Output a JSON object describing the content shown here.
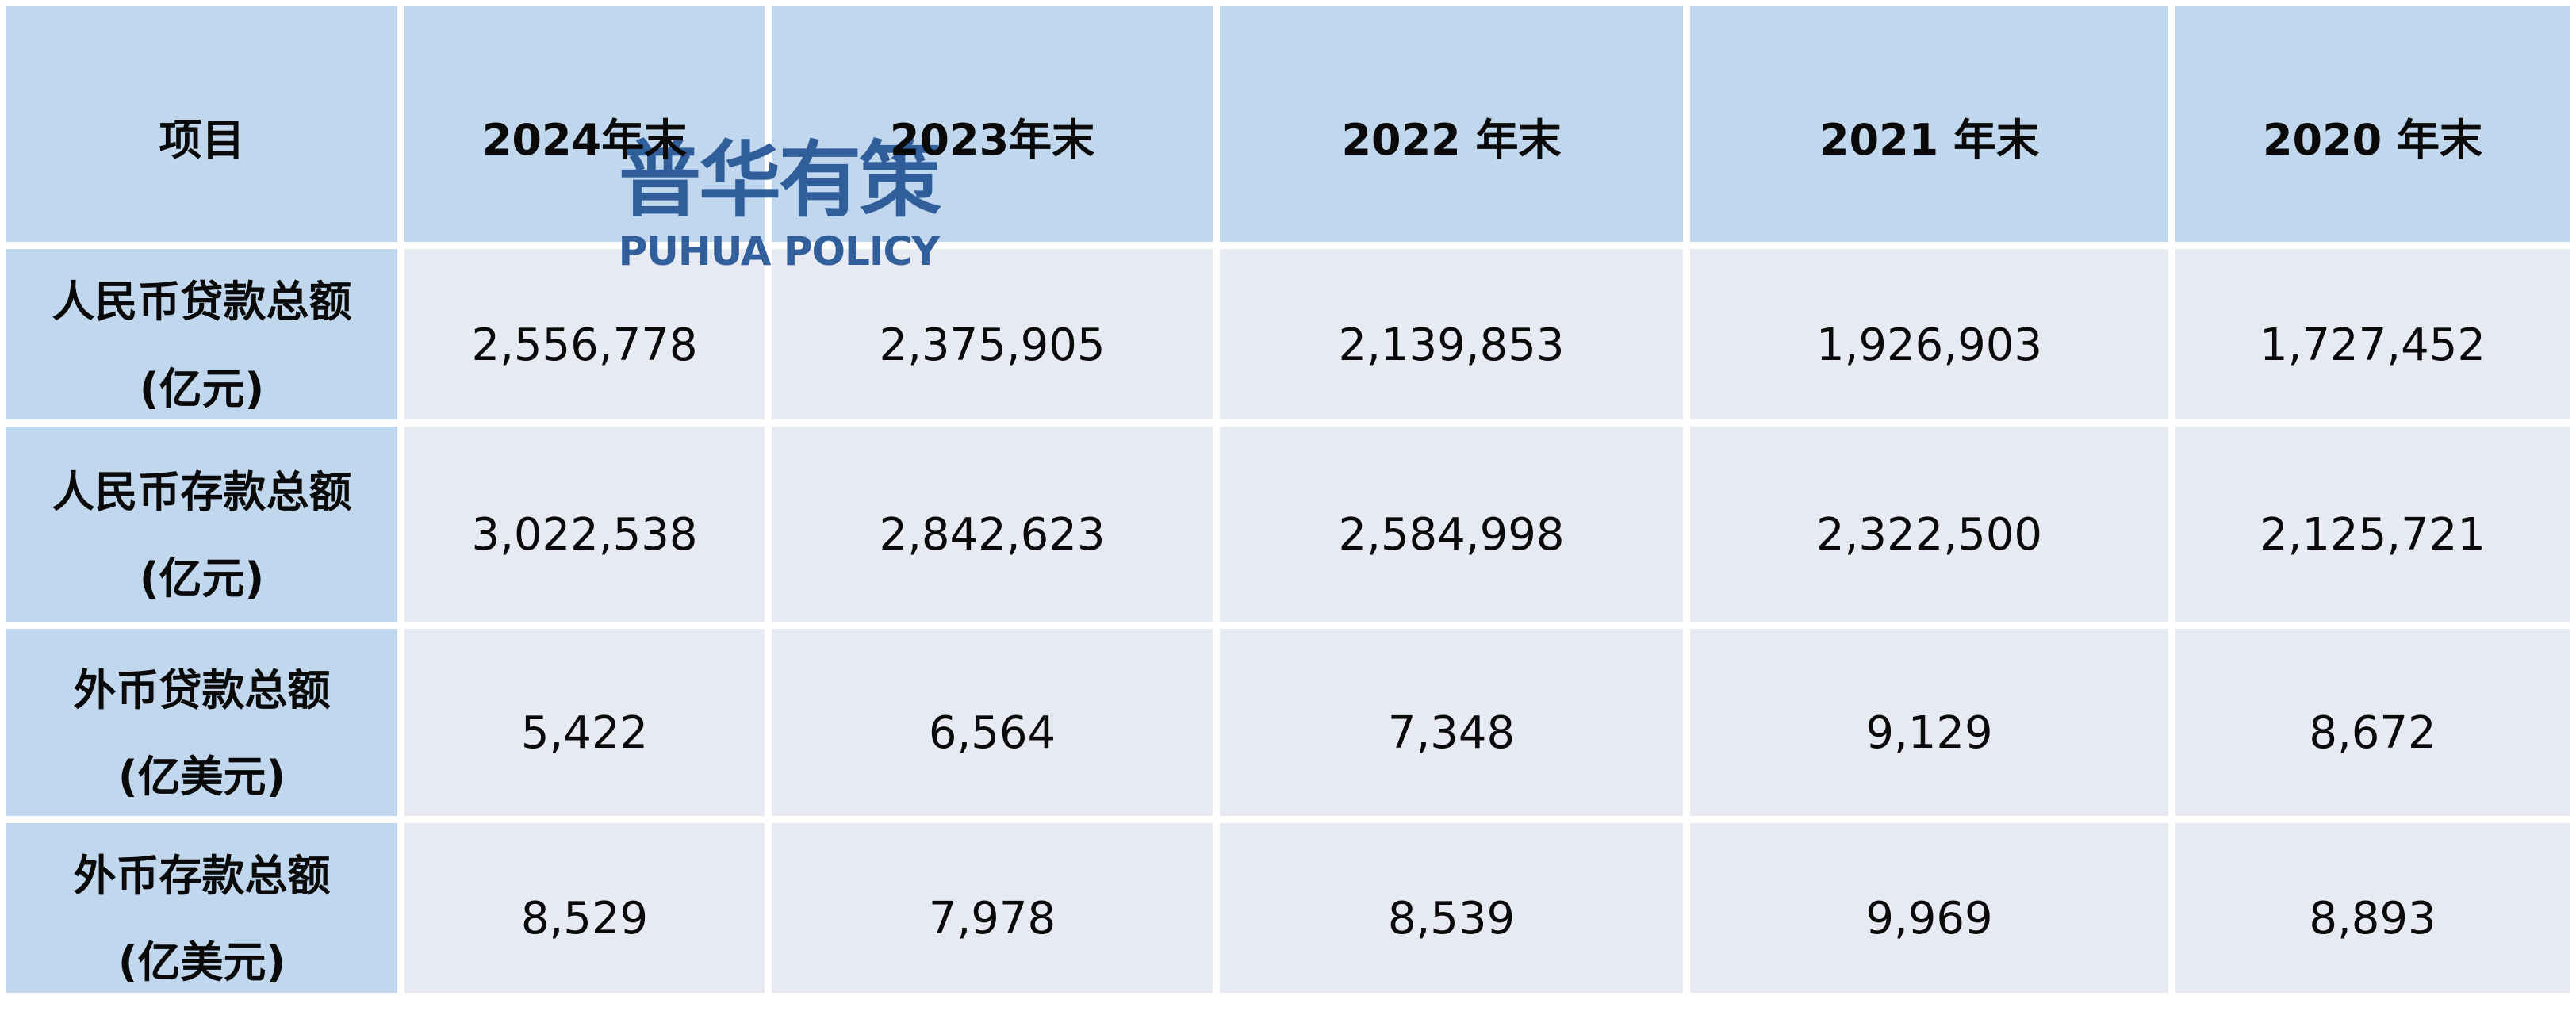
{
  "watermark": {
    "cjk": "普华有策",
    "latin": "PUHUA POLICY",
    "color": "#2b5b99"
  },
  "colors": {
    "header_bg": "#c1d7ed",
    "label_column_bg": "#c1d7ed",
    "value_cell_bg": "#e8eaf3",
    "grid_line": "#ffffff",
    "text": "#0a0a0a"
  },
  "table": {
    "columns": [
      "项目",
      "2024年末",
      "2023年末",
      "2022 年末",
      "2021 年末",
      "2020 年末"
    ],
    "rows": [
      {
        "label": "人民币贷款总额",
        "unit": "(亿元)",
        "values": [
          "2,556,778",
          "2,375,905",
          "2,139,853",
          "1,926,903",
          "1,727,452"
        ]
      },
      {
        "label": "人民币存款总额",
        "unit": "(亿元)",
        "values": [
          "3,022,538",
          "2,842,623",
          "2,584,998",
          "2,322,500",
          "2,125,721"
        ]
      },
      {
        "label": "外币贷款总额",
        "unit": "(亿美元)",
        "values": [
          "5,422",
          "6,564",
          "7,348",
          "9,129",
          "8,672"
        ]
      },
      {
        "label": "外币存款总额",
        "unit": "(亿美元)",
        "values": [
          "8,529",
          "7,978",
          "8,539",
          "9,969",
          "8,893"
        ]
      }
    ]
  }
}
